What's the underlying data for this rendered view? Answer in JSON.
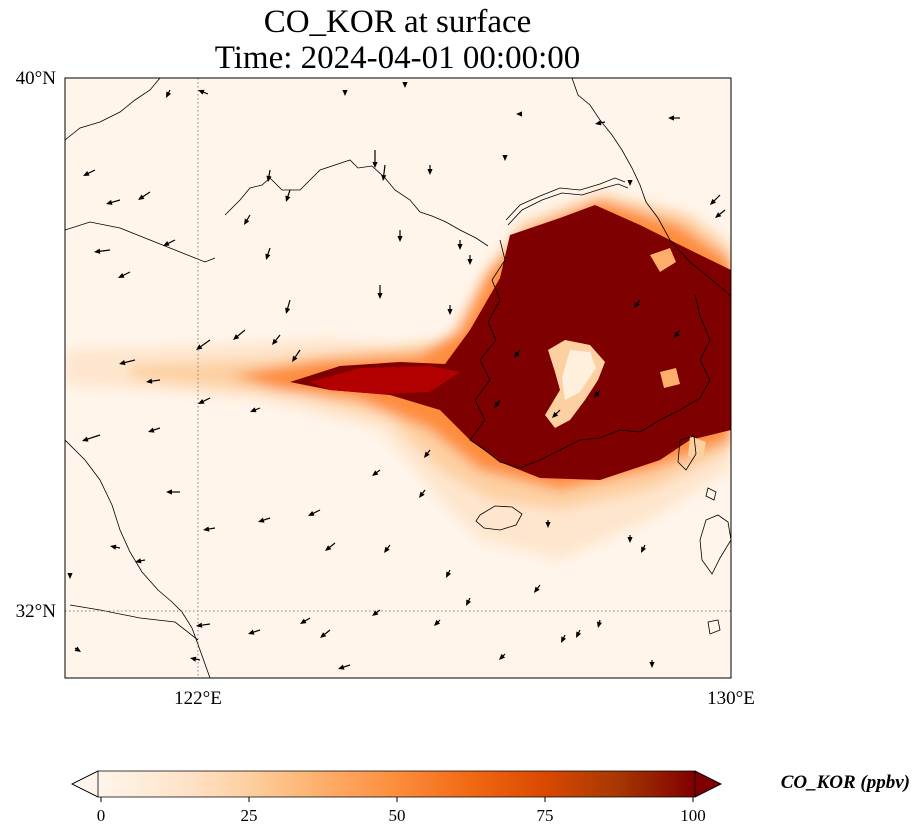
{
  "title": {
    "line1": "CO_KOR at surface",
    "line2": "Time: 2024-04-01 00:00:00"
  },
  "map": {
    "extent": {
      "lon_min": 120,
      "lon_max": 130,
      "lat_min": 31,
      "lat_max": 40
    },
    "lat_ticks": [
      {
        "value": 40,
        "label": "40°N"
      },
      {
        "value": 32,
        "label": "32°N"
      }
    ],
    "lon_ticks": [
      {
        "value": 122,
        "label": "122°E"
      },
      {
        "value": 130,
        "label": "130°E"
      }
    ],
    "gridlines": {
      "lats": [
        32
      ],
      "lons": [
        122
      ],
      "style": "dotted",
      "color": "#808080"
    },
    "background_color": "#fff5eb",
    "coastline_color": "#000000",
    "wind_vector_color": "#000000"
  },
  "colorbar": {
    "label": "CO_KOR (ppbv)",
    "min": 0,
    "max": 100,
    "extend": "both",
    "ticks": [
      {
        "value": 0,
        "label": "0"
      },
      {
        "value": 25,
        "label": "25"
      },
      {
        "value": 50,
        "label": "50"
      },
      {
        "value": 75,
        "label": "75"
      },
      {
        "value": 100,
        "label": "100"
      }
    ],
    "colormap": [
      "#fff5eb",
      "#fee6ce",
      "#fdd0a2",
      "#fdae6b",
      "#fd8d3c",
      "#f16913",
      "#d94801",
      "#a63603",
      "#7f0000"
    ]
  }
}
